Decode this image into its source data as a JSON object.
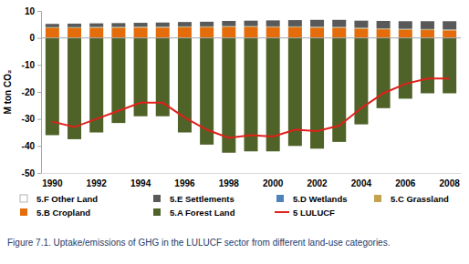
{
  "chart_data": {
    "type": "bar",
    "title": "Figure 7.1. Uptake/emissions of GHG in the LULUCF sector from different land-use categories.",
    "y_label": "M ton CO₂",
    "categories": [
      "1990",
      null,
      "1992",
      null,
      "1994",
      null,
      "1996",
      null,
      "1998",
      null,
      "2000",
      null,
      "2002",
      null,
      "2004",
      null,
      "2006",
      null,
      "2008"
    ],
    "stacked": true,
    "grid": false,
    "legend": "bottom",
    "ylim": [
      -50,
      10
    ],
    "yticks": [
      -50,
      -40,
      -30,
      -20,
      -10,
      0,
      10
    ],
    "series": [
      {
        "name": "5.F Other Land",
        "color": "#ffffff",
        "values": [
          0,
          0,
          0,
          0,
          0,
          0,
          0,
          0,
          0,
          0,
          0,
          0,
          0,
          0,
          0,
          0,
          0,
          0,
          0
        ]
      },
      {
        "name": "5.E Settlements",
        "color": "#595959",
        "values": [
          1.2,
          1.3,
          1.3,
          1.4,
          1.4,
          1.5,
          1.6,
          1.7,
          1.9,
          2.0,
          2.2,
          2.3,
          2.5,
          2.6,
          2.6,
          2.7,
          2.8,
          2.9,
          3.0
        ]
      },
      {
        "name": "5.D Wetlands",
        "color": "#4f81bd",
        "values": [
          0.1,
          0.1,
          0.1,
          0.1,
          0.1,
          0.1,
          0.1,
          0.1,
          0.1,
          0.1,
          0.1,
          0.1,
          0.1,
          0.1,
          0.1,
          0.1,
          0.1,
          0.1,
          0.1
        ]
      },
      {
        "name": "5.C Grassland",
        "color": "#c4a24f",
        "values": [
          0.3,
          0.3,
          0.3,
          0.3,
          0.3,
          0.3,
          0.3,
          0.3,
          0.3,
          0.3,
          0.3,
          0.3,
          0.3,
          0.3,
          0.3,
          0.3,
          0.3,
          0.3,
          0.3
        ]
      },
      {
        "name": "5.B Cropland",
        "color": "#e46c0a",
        "values": [
          3.6,
          3.6,
          3.7,
          3.7,
          3.8,
          3.8,
          3.9,
          3.9,
          4.0,
          4.0,
          3.9,
          3.9,
          3.8,
          3.7,
          3.4,
          3.2,
          3.0,
          2.9,
          2.8
        ]
      },
      {
        "name": "5.A Forest Land",
        "color": "#4f6228",
        "values": [
          -36,
          -37.5,
          -35,
          -31.5,
          -29,
          -29,
          -35,
          -39.5,
          -42.5,
          -42,
          -42,
          -40,
          -41,
          -38.5,
          -32,
          -26,
          -22.5,
          -20.5,
          -20.5
        ]
      },
      {
        "name": "5 LULUCF",
        "color": "#e0201b",
        "type": "line",
        "values": [
          -31,
          -33,
          -30,
          -27,
          -24,
          -24,
          -29.5,
          -34,
          -37,
          -36,
          -36.5,
          -34,
          -34.5,
          -32.5,
          -26,
          -20.5,
          -17,
          -15,
          -15
        ]
      }
    ]
  }
}
